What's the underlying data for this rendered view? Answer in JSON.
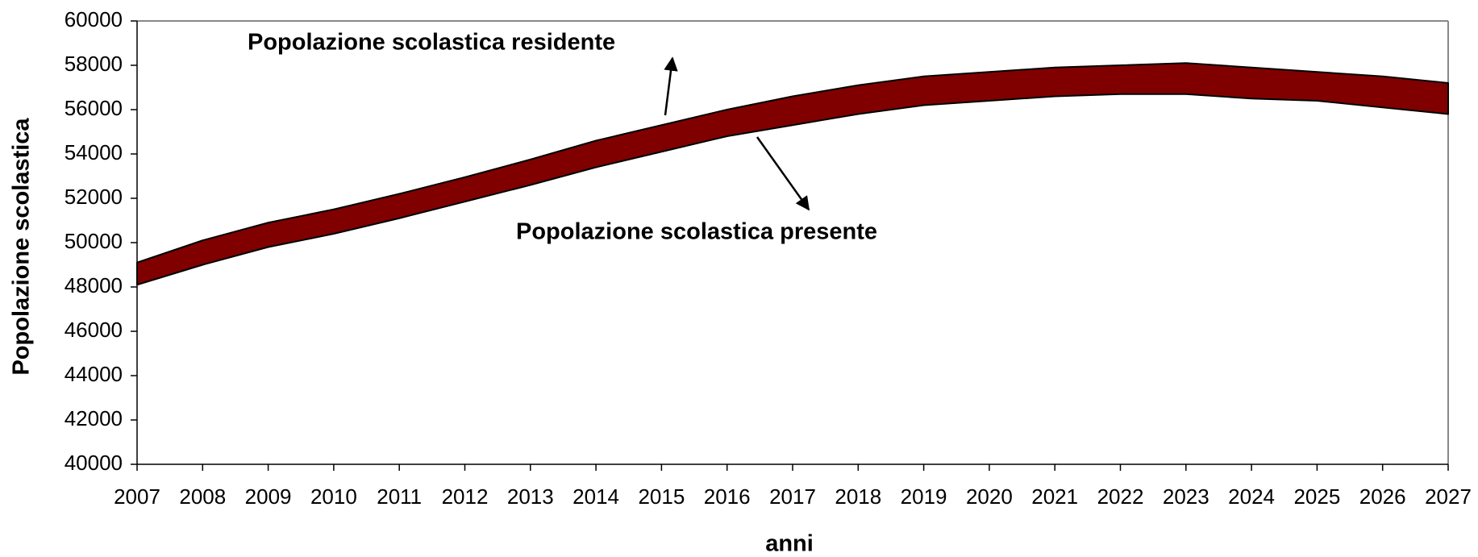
{
  "chart_data": {
    "type": "band",
    "x_label": "anni",
    "y_label": "Popolazione scolastica",
    "x": [
      2007,
      2008,
      2009,
      2010,
      2011,
      2012,
      2013,
      2014,
      2015,
      2016,
      2017,
      2018,
      2019,
      2020,
      2021,
      2022,
      2023,
      2024,
      2025,
      2026,
      2027
    ],
    "series": [
      {
        "name": "Popolazione scolastica residente",
        "color": "#800000",
        "values": [
          49100,
          50100,
          50900,
          51500,
          52200,
          52950,
          53750,
          54600,
          55300,
          56000,
          56600,
          57100,
          57500,
          57700,
          57900,
          58000,
          58100,
          57900,
          57700,
          57500,
          57200
        ]
      },
      {
        "name": "Popolazione scolastica presente",
        "color": "#800000",
        "values": [
          48100,
          49000,
          49800,
          50400,
          51100,
          51850,
          52600,
          53400,
          54100,
          54800,
          55300,
          55800,
          56200,
          56400,
          56600,
          56700,
          56700,
          56500,
          56400,
          56100,
          55800
        ]
      }
    ],
    "xlim": [
      2007,
      2027
    ],
    "xticks": [
      2007,
      2008,
      2009,
      2010,
      2011,
      2012,
      2013,
      2014,
      2015,
      2016,
      2017,
      2018,
      2019,
      2020,
      2021,
      2022,
      2023,
      2024,
      2025,
      2026,
      2027
    ],
    "ylim": [
      40000,
      60000
    ],
    "yticks": [
      40000,
      42000,
      44000,
      46000,
      48000,
      50000,
      52000,
      54000,
      56000,
      58000,
      60000
    ],
    "grid": false
  }
}
